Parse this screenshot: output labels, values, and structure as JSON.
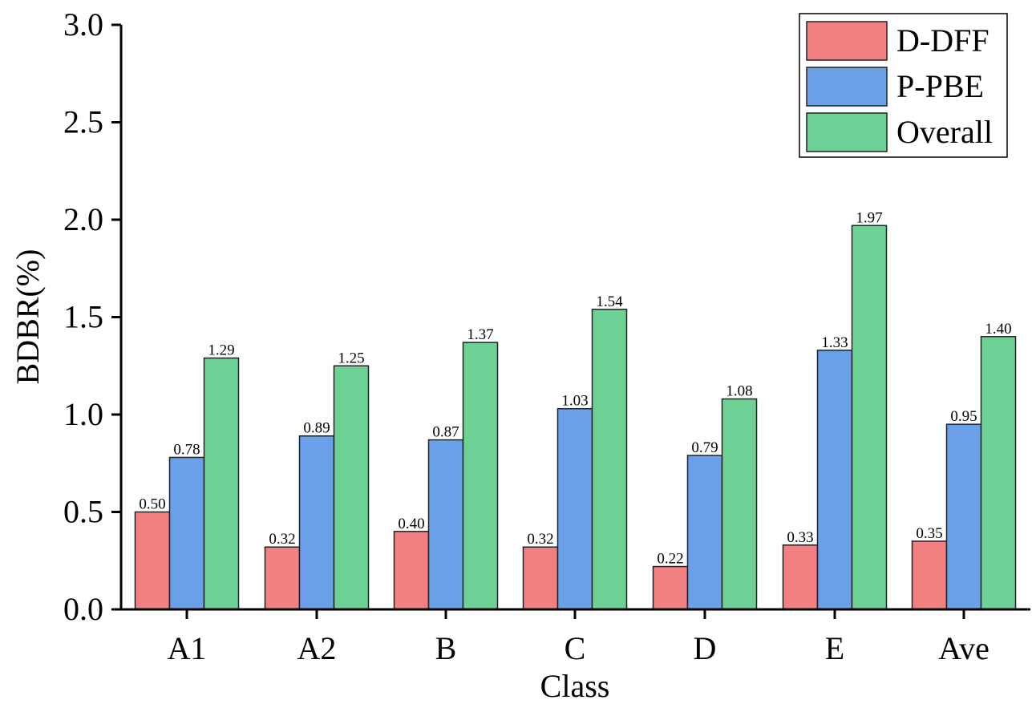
{
  "chart_data": {
    "type": "bar",
    "xlabel": "Class",
    "ylabel": "BDBR(%)",
    "categories": [
      "A1",
      "A2",
      "B",
      "C",
      "D",
      "E",
      "Ave"
    ],
    "series": [
      {
        "name": "D-DFF",
        "color": "#f28080",
        "values": [
          0.5,
          0.32,
          0.4,
          0.32,
          0.22,
          0.33,
          0.35
        ]
      },
      {
        "name": "P-PBE",
        "color": "#6aa0e8",
        "values": [
          0.78,
          0.89,
          0.87,
          1.03,
          0.79,
          1.33,
          0.95
        ]
      },
      {
        "name": "Overall",
        "color": "#6dd196",
        "values": [
          1.29,
          1.25,
          1.37,
          1.54,
          1.08,
          1.97,
          1.4
        ]
      }
    ],
    "ylim": [
      0,
      3.0
    ],
    "yticks": [
      "0.0",
      "0.5",
      "1.0",
      "1.5",
      "2.0",
      "2.5",
      "3.0"
    ],
    "grid": false,
    "legend_position": "top-right",
    "data_labels": true
  }
}
